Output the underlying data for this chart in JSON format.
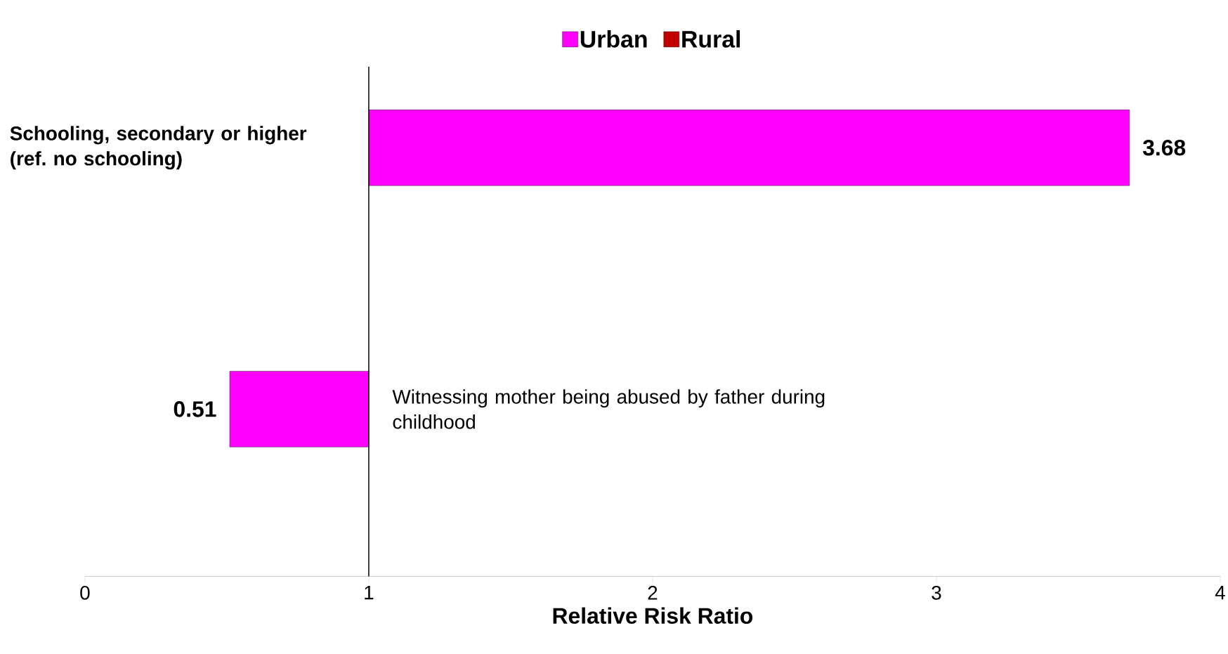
{
  "chart_data": {
    "type": "bar",
    "orientation": "horizontal",
    "categories": [
      "Schooling, secondary or higher (ref. no schooling)",
      "Witnessing mother being abused by father during childhood"
    ],
    "series": [
      {
        "name": "Urban",
        "color": "#ff00ff",
        "values": [
          2.68,
          -0.49
        ],
        "base": [
          1,
          1
        ],
        "value_labels": [
          "3.68",
          "0.51"
        ]
      },
      {
        "name": "Rural",
        "color": "#c00000",
        "values": [
          null,
          null
        ]
      }
    ],
    "xlabel": "Relative Risk Ratio",
    "xlim": [
      0,
      4
    ],
    "xticks": [
      0,
      1,
      2,
      3,
      4
    ],
    "ref_lines": [
      {
        "axis": "x",
        "value": 1,
        "color": "#000000"
      }
    ],
    "legend": "top",
    "grid": false
  }
}
